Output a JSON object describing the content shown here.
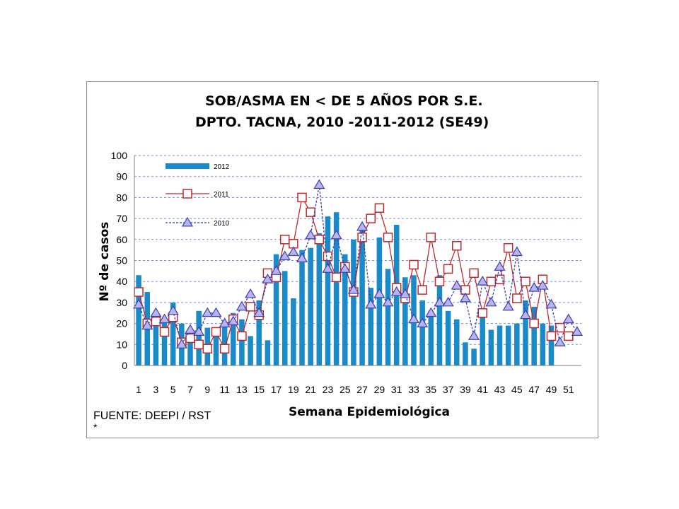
{
  "chart_data": {
    "type": "bar",
    "title": "SOB/ASMA EN < DE 5 AÑOS POR S.E.",
    "subtitle": "DPTO. TACNA, 2010 -2011-2012 (SE49)",
    "xlabel": "Semana Epidemiológica",
    "ylabel": "Nº de casos",
    "ylim": [
      0,
      100
    ],
    "yticks": [
      0,
      10,
      20,
      30,
      40,
      50,
      60,
      70,
      80,
      90,
      100
    ],
    "grid": true,
    "legend_position": "top-left",
    "xtick_labels": [
      "1",
      "3",
      "5",
      "7",
      "9",
      "11",
      "13",
      "15",
      "17",
      "19",
      "21",
      "23",
      "25",
      "27",
      "29",
      "31",
      "33",
      "35",
      "37",
      "39",
      "41",
      "43",
      "45",
      "47",
      "49",
      "51"
    ],
    "x": [
      1,
      2,
      3,
      4,
      5,
      6,
      7,
      8,
      9,
      10,
      11,
      12,
      13,
      14,
      15,
      16,
      17,
      18,
      19,
      20,
      21,
      22,
      23,
      24,
      25,
      26,
      27,
      28,
      29,
      30,
      31,
      32,
      33,
      34,
      35,
      36,
      37,
      38,
      39,
      40,
      41,
      42,
      43,
      44,
      45,
      46,
      47,
      48,
      49,
      50,
      51,
      52
    ],
    "series": [
      {
        "name": "2012",
        "kind": "bar",
        "color": "#1b8ac8",
        "values": [
          43,
          35,
          24,
          21,
          30,
          20,
          16,
          26,
          18,
          15,
          20,
          25,
          22,
          14,
          31,
          12,
          53,
          45,
          32,
          55,
          56,
          63,
          71,
          73,
          53,
          60,
          66,
          37,
          61,
          46,
          67,
          42,
          43,
          31,
          26,
          43,
          26,
          22,
          11,
          8,
          26,
          17,
          19,
          19,
          20,
          31,
          28,
          20,
          19,
          null,
          null,
          null
        ]
      },
      {
        "name": "2011",
        "kind": "line",
        "marker": "square-open",
        "color": "#c0292b",
        "values": [
          35,
          20,
          21,
          16,
          23,
          11,
          13,
          10,
          8,
          16,
          8,
          22,
          14,
          28,
          24,
          44,
          42,
          60,
          58,
          80,
          73,
          60,
          52,
          42,
          47,
          35,
          61,
          70,
          75,
          61,
          37,
          32,
          48,
          36,
          61,
          40,
          46,
          57,
          36,
          44,
          25,
          40,
          41,
          56,
          32,
          40,
          20,
          41,
          14,
          18,
          14,
          null
        ]
      },
      {
        "name": "2010",
        "kind": "line",
        "marker": "triangle",
        "dash": "dashed",
        "color": "#3b3fb5",
        "values": [
          29,
          19,
          25,
          22,
          26,
          10,
          17,
          16,
          25,
          25,
          20,
          21,
          28,
          34,
          25,
          41,
          45,
          52,
          54,
          51,
          62,
          86,
          46,
          62,
          46,
          36,
          66,
          29,
          34,
          30,
          35,
          34,
          22,
          20,
          25,
          30,
          30,
          38,
          32,
          14,
          40,
          30,
          47,
          28,
          54,
          24,
          37,
          38,
          29,
          11,
          22,
          16
        ]
      }
    ]
  },
  "source": "FUENTE: DEEPI / RST",
  "footnote": "*"
}
